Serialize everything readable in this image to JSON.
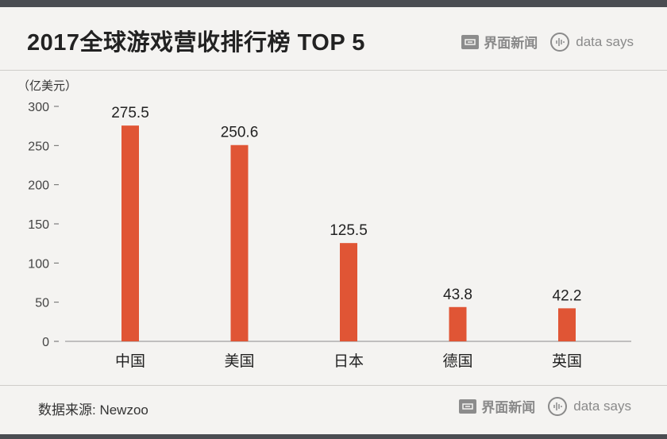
{
  "header": {
    "title": "2017全球游戏营收排行榜 TOP 5"
  },
  "branding": {
    "jiemian": "界面新闻",
    "datasays": "data says"
  },
  "footer": {
    "source": "数据来源: Newzoo"
  },
  "colors": {
    "bar": "#e05535",
    "band": "#4a4d52",
    "background": "#f4f3f1"
  },
  "chart_data": {
    "type": "bar",
    "title": "2017全球游戏营收排行榜 TOP 5",
    "unit_label": "（亿美元）",
    "xlabel": "",
    "ylabel": "",
    "categories": [
      "中国",
      "美国",
      "日本",
      "德国",
      "英国"
    ],
    "values": [
      275.5,
      250.6,
      125.5,
      43.8,
      42.2
    ],
    "value_labels": [
      "275.5",
      "250.6",
      "125.5",
      "43.8",
      "42.2"
    ],
    "yticks": [
      0,
      50,
      100,
      150,
      200,
      250,
      300
    ],
    "ylim": [
      0,
      300
    ],
    "grid": false,
    "legend": "none"
  }
}
